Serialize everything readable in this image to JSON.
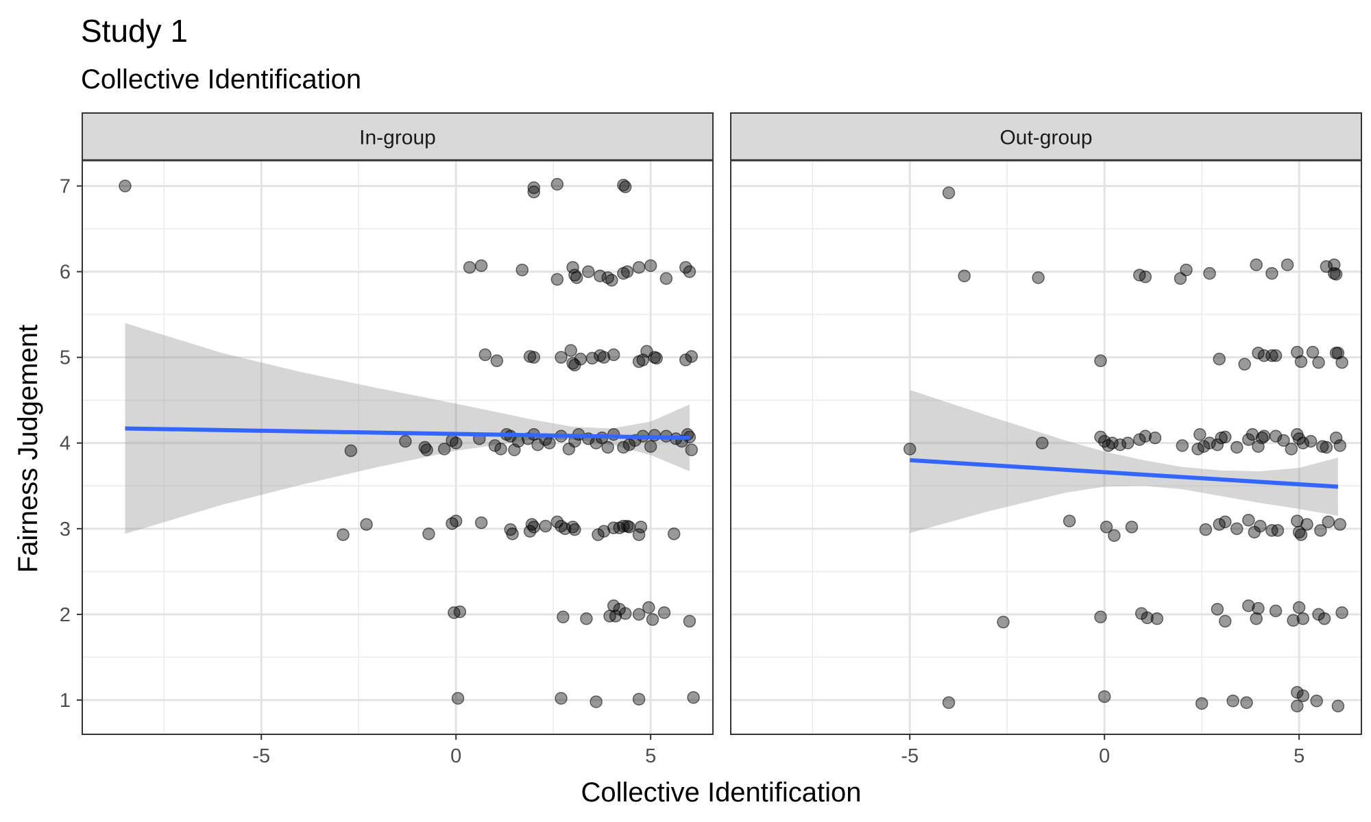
{
  "chart_data": {
    "type": "scatter",
    "title": "Study 1",
    "subtitle": "Collective Identification",
    "xlabel": "Collective Identification",
    "ylabel": "Fairness Judgement",
    "xlim": [
      -9.6,
      6.6
    ],
    "ylim": [
      0.6,
      7.3
    ],
    "x_ticks": [
      -5,
      0,
      5
    ],
    "y_ticks": [
      1,
      2,
      3,
      4,
      5,
      6,
      7
    ],
    "grid": true,
    "facets": [
      {
        "label": "In-group",
        "fit": {
          "x": [
            -8.5,
            6.0
          ],
          "y": [
            4.17,
            4.06
          ]
        },
        "ci_band": {
          "x": [
            -8.5,
            -6.0,
            -4.0,
            -2.0,
            0.0,
            2.0,
            3.0,
            4.0,
            5.0,
            6.0
          ],
          "upper": [
            5.4,
            5.05,
            4.83,
            4.64,
            4.46,
            4.27,
            4.19,
            4.17,
            4.25,
            4.45
          ],
          "lower": [
            2.94,
            3.28,
            3.51,
            3.72,
            3.91,
            4.04,
            4.04,
            3.98,
            3.86,
            3.67
          ]
        },
        "points": [
          [
            -8.5,
            7.0
          ],
          [
            2.0,
            6.98
          ],
          [
            2.0,
            6.93
          ],
          [
            2.6,
            7.02
          ],
          [
            4.3,
            7.01
          ],
          [
            4.35,
            6.99
          ],
          [
            0.35,
            6.05
          ],
          [
            0.65,
            6.07
          ],
          [
            1.7,
            6.02
          ],
          [
            2.6,
            5.91
          ],
          [
            3.0,
            6.05
          ],
          [
            3.05,
            5.96
          ],
          [
            3.1,
            5.93
          ],
          [
            3.4,
            6.0
          ],
          [
            3.7,
            5.95
          ],
          [
            3.9,
            5.93
          ],
          [
            4.0,
            5.9
          ],
          [
            4.3,
            5.98
          ],
          [
            4.4,
            6.0
          ],
          [
            4.7,
            6.05
          ],
          [
            5.0,
            6.07
          ],
          [
            5.4,
            5.92
          ],
          [
            5.9,
            6.05
          ],
          [
            6.0,
            6.0
          ],
          [
            0.75,
            5.03
          ],
          [
            1.05,
            4.96
          ],
          [
            1.9,
            5.01
          ],
          [
            2.0,
            5.0
          ],
          [
            2.7,
            5.0
          ],
          [
            2.95,
            5.08
          ],
          [
            3.0,
            4.93
          ],
          [
            3.05,
            4.91
          ],
          [
            3.2,
            4.98
          ],
          [
            3.5,
            4.99
          ],
          [
            3.7,
            5.02
          ],
          [
            3.8,
            5.0
          ],
          [
            4.05,
            5.03
          ],
          [
            4.7,
            4.95
          ],
          [
            4.8,
            4.97
          ],
          [
            4.9,
            5.07
          ],
          [
            5.1,
            5.0
          ],
          [
            5.15,
            4.99
          ],
          [
            5.9,
            4.97
          ],
          [
            6.05,
            5.01
          ],
          [
            -2.7,
            3.91
          ],
          [
            -1.3,
            4.02
          ],
          [
            -0.8,
            3.95
          ],
          [
            -0.75,
            3.92
          ],
          [
            -0.3,
            3.93
          ],
          [
            -0.1,
            4.03
          ],
          [
            0.0,
            4.0
          ],
          [
            0.6,
            4.05
          ],
          [
            1.0,
            3.97
          ],
          [
            1.15,
            3.93
          ],
          [
            1.3,
            4.1
          ],
          [
            1.4,
            4.08
          ],
          [
            1.5,
            3.92
          ],
          [
            1.6,
            4.02
          ],
          [
            1.85,
            4.05
          ],
          [
            2.0,
            4.1
          ],
          [
            2.1,
            3.98
          ],
          [
            2.3,
            4.04
          ],
          [
            2.4,
            4.0
          ],
          [
            2.7,
            4.08
          ],
          [
            2.9,
            3.93
          ],
          [
            3.05,
            4.02
          ],
          [
            3.15,
            4.1
          ],
          [
            3.4,
            4.05
          ],
          [
            3.6,
            4.0
          ],
          [
            3.75,
            4.06
          ],
          [
            3.9,
            3.95
          ],
          [
            4.05,
            4.1
          ],
          [
            4.3,
            3.95
          ],
          [
            4.45,
            3.98
          ],
          [
            4.6,
            4.03
          ],
          [
            4.8,
            4.08
          ],
          [
            5.0,
            3.96
          ],
          [
            5.1,
            4.09
          ],
          [
            5.4,
            4.08
          ],
          [
            5.65,
            4.05
          ],
          [
            5.8,
            4.02
          ],
          [
            5.95,
            4.1
          ],
          [
            6.0,
            4.07
          ],
          [
            6.05,
            3.92
          ],
          [
            -2.9,
            2.93
          ],
          [
            -2.3,
            3.05
          ],
          [
            -0.7,
            2.94
          ],
          [
            -0.1,
            3.06
          ],
          [
            0.0,
            3.09
          ],
          [
            0.65,
            3.07
          ],
          [
            1.4,
            2.99
          ],
          [
            1.45,
            2.94
          ],
          [
            1.9,
            2.97
          ],
          [
            1.95,
            3.05
          ],
          [
            2.0,
            3.02
          ],
          [
            2.3,
            3.03
          ],
          [
            2.6,
            3.08
          ],
          [
            2.7,
            3.03
          ],
          [
            2.8,
            3.0
          ],
          [
            3.0,
            3.02
          ],
          [
            3.05,
            2.99
          ],
          [
            3.65,
            2.93
          ],
          [
            3.8,
            2.97
          ],
          [
            4.05,
            3.01
          ],
          [
            4.2,
            3.01
          ],
          [
            4.3,
            3.03
          ],
          [
            4.4,
            3.03
          ],
          [
            4.45,
            3.02
          ],
          [
            4.7,
            2.93
          ],
          [
            4.75,
            3.02
          ],
          [
            5.6,
            2.94
          ],
          [
            -0.05,
            2.02
          ],
          [
            0.1,
            2.03
          ],
          [
            2.75,
            1.97
          ],
          [
            3.35,
            1.95
          ],
          [
            3.95,
            1.98
          ],
          [
            4.05,
            2.1
          ],
          [
            4.1,
            1.98
          ],
          [
            4.2,
            2.06
          ],
          [
            4.35,
            2.01
          ],
          [
            4.7,
            2.0
          ],
          [
            4.95,
            2.08
          ],
          [
            5.05,
            1.94
          ],
          [
            5.35,
            2.02
          ],
          [
            6.0,
            1.92
          ],
          [
            0.05,
            1.02
          ],
          [
            2.7,
            1.02
          ],
          [
            3.6,
            0.98
          ],
          [
            4.7,
            1.01
          ],
          [
            6.1,
            1.03
          ]
        ]
      },
      {
        "label": "Out-group",
        "fit": {
          "x": [
            -5.0,
            6.0
          ],
          "y": [
            3.8,
            3.49
          ]
        },
        "ci_band": {
          "x": [
            -5.0,
            -3.0,
            -1.0,
            0.0,
            1.0,
            2.0,
            3.0,
            4.0,
            5.0,
            6.0
          ],
          "upper": [
            4.62,
            4.32,
            4.03,
            3.9,
            3.8,
            3.72,
            3.68,
            3.67,
            3.71,
            3.83
          ],
          "lower": [
            2.95,
            3.2,
            3.42,
            3.49,
            3.5,
            3.46,
            3.38,
            3.3,
            3.23,
            3.15
          ]
        },
        "points": [
          [
            -4.0,
            6.92
          ],
          [
            -3.6,
            5.95
          ],
          [
            -1.7,
            5.93
          ],
          [
            0.9,
            5.96
          ],
          [
            1.05,
            5.94
          ],
          [
            1.95,
            5.92
          ],
          [
            2.1,
            6.02
          ],
          [
            2.7,
            5.98
          ],
          [
            3.9,
            6.08
          ],
          [
            4.3,
            5.98
          ],
          [
            4.7,
            6.08
          ],
          [
            5.7,
            6.06
          ],
          [
            5.9,
            6.08
          ],
          [
            5.9,
            5.98
          ],
          [
            5.95,
            5.97
          ],
          [
            -0.1,
            4.96
          ],
          [
            2.95,
            4.98
          ],
          [
            3.6,
            4.92
          ],
          [
            3.95,
            5.05
          ],
          [
            4.1,
            5.02
          ],
          [
            4.3,
            5.02
          ],
          [
            4.4,
            5.02
          ],
          [
            4.95,
            5.06
          ],
          [
            5.05,
            4.95
          ],
          [
            5.35,
            5.06
          ],
          [
            5.5,
            4.94
          ],
          [
            5.95,
            5.05
          ],
          [
            6.0,
            5.05
          ],
          [
            6.1,
            4.94
          ],
          [
            -5.0,
            3.93
          ],
          [
            -1.6,
            4.0
          ],
          [
            -0.1,
            4.07
          ],
          [
            0.0,
            4.02
          ],
          [
            0.1,
            3.97
          ],
          [
            0.2,
            4.0
          ],
          [
            0.4,
            3.98
          ],
          [
            0.6,
            4.0
          ],
          [
            0.9,
            4.04
          ],
          [
            1.05,
            4.08
          ],
          [
            1.3,
            4.06
          ],
          [
            2.0,
            3.97
          ],
          [
            2.4,
            3.93
          ],
          [
            2.45,
            4.1
          ],
          [
            2.55,
            3.96
          ],
          [
            2.7,
            4.0
          ],
          [
            2.9,
            3.98
          ],
          [
            3.0,
            4.06
          ],
          [
            3.1,
            4.07
          ],
          [
            3.4,
            3.95
          ],
          [
            3.7,
            4.04
          ],
          [
            3.8,
            4.1
          ],
          [
            3.95,
            3.96
          ],
          [
            4.05,
            4.06
          ],
          [
            4.1,
            4.08
          ],
          [
            4.4,
            4.08
          ],
          [
            4.6,
            4.03
          ],
          [
            4.8,
            3.93
          ],
          [
            4.95,
            4.1
          ],
          [
            5.0,
            4.05
          ],
          [
            5.1,
            4.0
          ],
          [
            5.3,
            4.02
          ],
          [
            5.6,
            3.96
          ],
          [
            5.7,
            3.95
          ],
          [
            5.95,
            4.06
          ],
          [
            6.05,
            3.97
          ],
          [
            -0.9,
            3.09
          ],
          [
            0.05,
            3.02
          ],
          [
            0.25,
            2.92
          ],
          [
            0.7,
            3.02
          ],
          [
            2.6,
            2.99
          ],
          [
            2.95,
            3.05
          ],
          [
            3.1,
            3.08
          ],
          [
            3.4,
            3.0
          ],
          [
            3.7,
            3.1
          ],
          [
            3.85,
            2.96
          ],
          [
            4.0,
            3.03
          ],
          [
            4.3,
            2.98
          ],
          [
            4.45,
            2.98
          ],
          [
            4.95,
            3.09
          ],
          [
            5.0,
            2.96
          ],
          [
            5.05,
            2.93
          ],
          [
            5.2,
            3.05
          ],
          [
            5.55,
            2.98
          ],
          [
            5.75,
            3.08
          ],
          [
            6.05,
            3.05
          ],
          [
            -2.6,
            1.91
          ],
          [
            -0.1,
            1.97
          ],
          [
            0.95,
            2.01
          ],
          [
            1.1,
            1.96
          ],
          [
            1.35,
            1.95
          ],
          [
            2.9,
            2.06
          ],
          [
            3.1,
            1.92
          ],
          [
            3.7,
            2.1
          ],
          [
            3.9,
            1.95
          ],
          [
            3.95,
            2.07
          ],
          [
            4.4,
            2.04
          ],
          [
            4.85,
            1.93
          ],
          [
            5.0,
            2.08
          ],
          [
            5.1,
            1.95
          ],
          [
            5.5,
            2.0
          ],
          [
            5.65,
            1.95
          ],
          [
            6.1,
            2.02
          ],
          [
            -4.0,
            0.97
          ],
          [
            0.0,
            1.04
          ],
          [
            2.5,
            0.96
          ],
          [
            3.3,
            0.99
          ],
          [
            3.65,
            0.97
          ],
          [
            4.95,
            1.09
          ],
          [
            5.1,
            1.05
          ],
          [
            5.45,
            0.99
          ],
          [
            4.95,
            0.93
          ],
          [
            6.0,
            0.93
          ]
        ]
      }
    ]
  }
}
